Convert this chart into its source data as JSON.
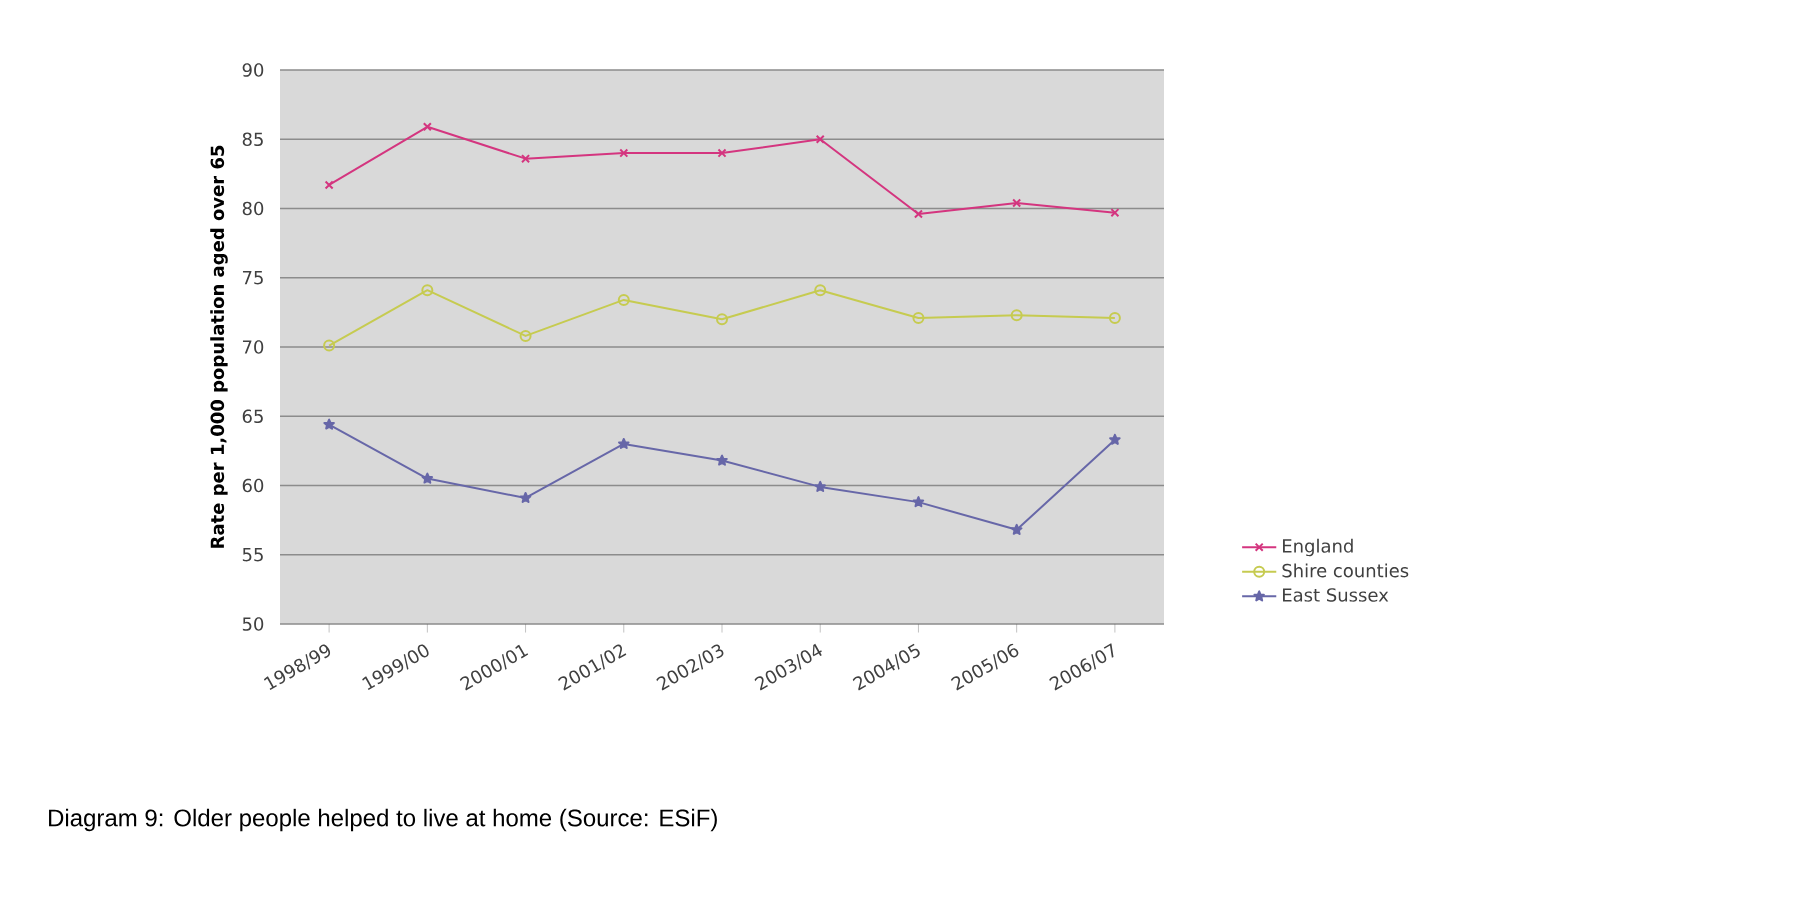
{
  "chart_data": {
    "type": "line",
    "ylabel": "Rate per 1,000 population aged over 65",
    "categories": [
      "1998/99",
      "1999/00",
      "2000/01",
      "2001/02",
      "2002/03",
      "2003/04",
      "2004/05",
      "2005/06",
      "2006/07"
    ],
    "series": [
      {
        "name": "England",
        "color": "#d4357f",
        "marker": "cross",
        "values": [
          81.7,
          85.9,
          83.6,
          84,
          84,
          85,
          79.6,
          80.4,
          79.7
        ]
      },
      {
        "name": "Shire counties",
        "color": "#c6cb50",
        "marker": "circle",
        "values": [
          70.1,
          74.1,
          70.8,
          73.4,
          72,
          74.1,
          72.1,
          72.3,
          72.1
        ]
      },
      {
        "name": "East Sussex",
        "color": "#6767a8",
        "marker": "star",
        "values": [
          64.4,
          60.5,
          59.1,
          63,
          61.8,
          59.9,
          58.8,
          56.8,
          63.3
        ]
      }
    ],
    "ylim": [
      50,
      90
    ],
    "yticks": [
      50,
      55,
      60,
      65,
      70,
      75,
      80,
      85,
      90
    ],
    "grid": "y",
    "legend": "bottom right",
    "line_style": "solid",
    "annotations": [
      "Diagram 9: Older people helped to live at home (Source: ESiF)"
    ]
  }
}
